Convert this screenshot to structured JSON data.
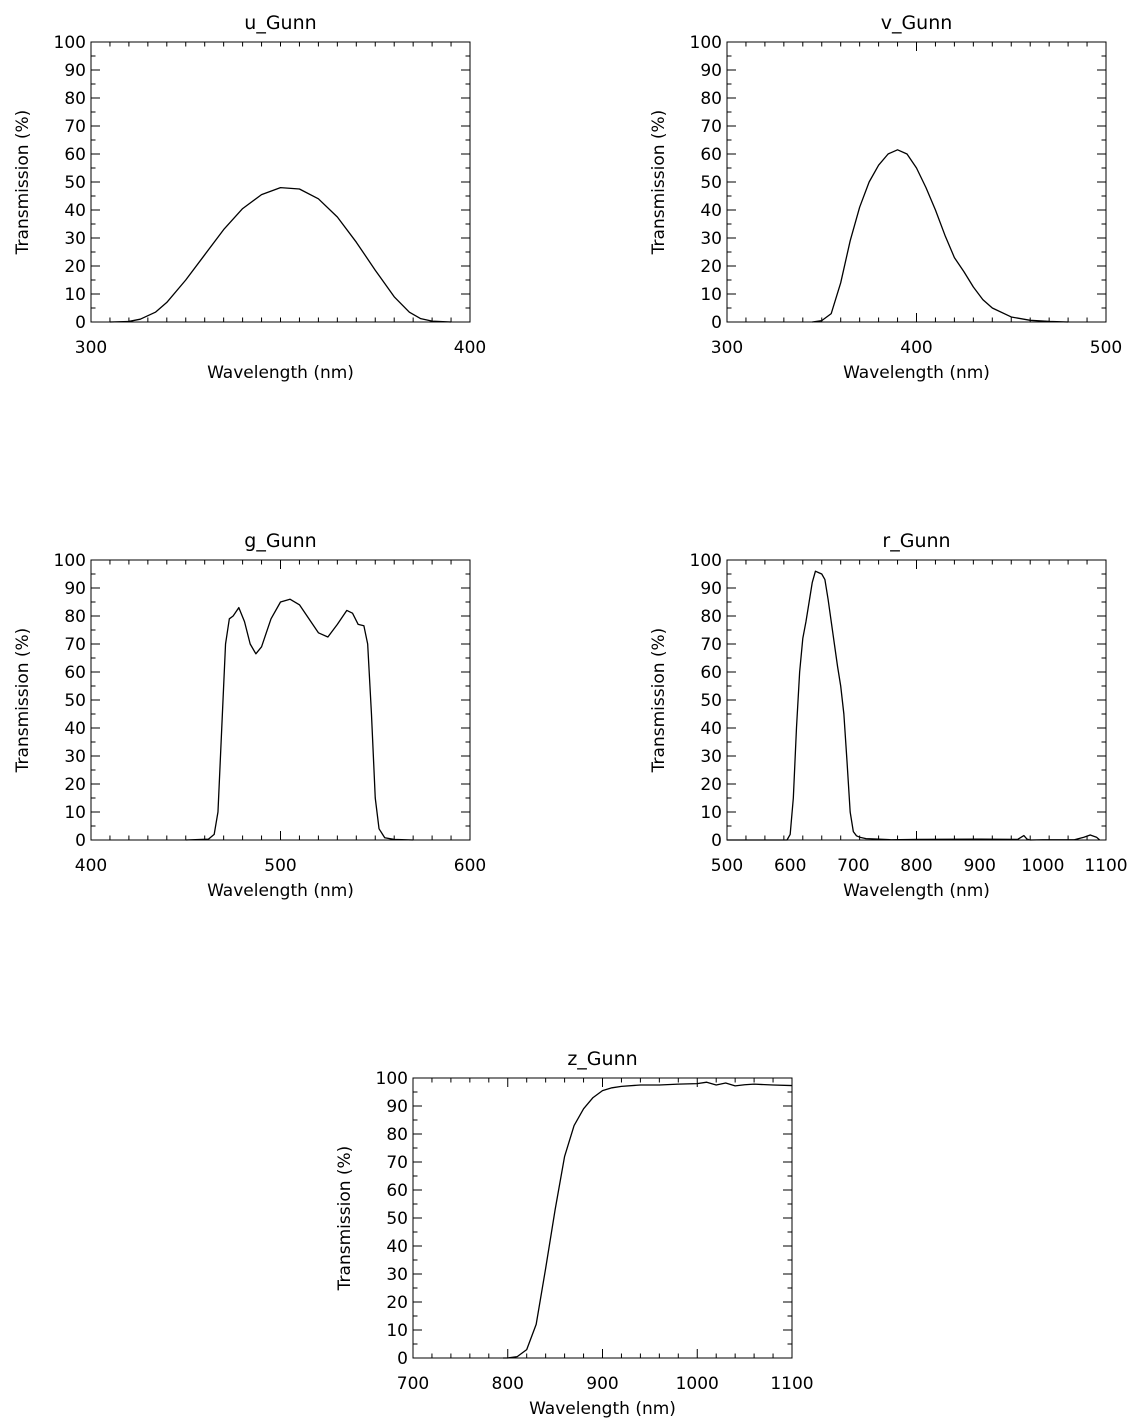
{
  "chart_data": [
    {
      "type": "line",
      "title": "u_Gunn",
      "xlabel": "Wavelength (nm)",
      "ylabel": "Transmission (%)",
      "xlim": [
        300,
        400
      ],
      "ylim": [
        0,
        100
      ],
      "xticks": [
        300,
        400
      ],
      "yticks": [
        0,
        10,
        20,
        30,
        40,
        50,
        60,
        70,
        80,
        90,
        100
      ],
      "series": [
        {
          "x": [
            305,
            310,
            313,
            317,
            320,
            325,
            330,
            335,
            340,
            345,
            350,
            355,
            360,
            365,
            370,
            375,
            380,
            384,
            387,
            390,
            395
          ],
          "y": [
            0,
            0.2,
            1,
            3.5,
            7,
            15,
            24,
            33,
            40.5,
            45.5,
            48,
            47.5,
            44,
            37.5,
            28.5,
            18.5,
            9,
            3.5,
            1.2,
            0.3,
            0
          ]
        }
      ]
    },
    {
      "type": "line",
      "title": "v_Gunn",
      "xlabel": "Wavelength (nm)",
      "ylabel": "Transmission (%)",
      "xlim": [
        300,
        500
      ],
      "ylim": [
        0,
        100
      ],
      "xticks": [
        300,
        400,
        500
      ],
      "yticks": [
        0,
        10,
        20,
        30,
        40,
        50,
        60,
        70,
        80,
        90,
        100
      ],
      "series": [
        {
          "x": [
            345,
            350,
            355,
            360,
            365,
            370,
            375,
            380,
            385,
            390,
            395,
            400,
            405,
            410,
            415,
            420,
            425,
            430,
            435,
            440,
            450,
            460,
            470,
            480
          ],
          "y": [
            0,
            0.5,
            3,
            14,
            29,
            41,
            50,
            56,
            60,
            61.5,
            60,
            55,
            48,
            40,
            31,
            23,
            18,
            12.5,
            8,
            5,
            1.8,
            0.6,
            0.2,
            0
          ]
        }
      ]
    },
    {
      "type": "line",
      "title": "g_Gunn",
      "xlabel": "Wavelength (nm)",
      "ylabel": "Transmission (%)",
      "xlim": [
        400,
        600
      ],
      "ylim": [
        0,
        100
      ],
      "xticks": [
        400,
        500,
        600
      ],
      "yticks": [
        0,
        10,
        20,
        30,
        40,
        50,
        60,
        70,
        80,
        90,
        100
      ],
      "series": [
        {
          "x": [
            450,
            462,
            465,
            467,
            469,
            471,
            473,
            475,
            478,
            481,
            484,
            487,
            490,
            495,
            500,
            505,
            510,
            515,
            520,
            525,
            530,
            535,
            538,
            541,
            544,
            546,
            548,
            550,
            552,
            555,
            560,
            570
          ],
          "y": [
            0,
            0.3,
            2,
            10,
            40,
            70,
            79,
            80,
            83,
            78,
            70,
            66.5,
            69,
            79,
            85,
            86,
            84,
            79,
            74,
            72.5,
            77,
            82,
            81,
            77,
            76.5,
            70,
            45,
            15,
            4,
            0.8,
            0.2,
            0
          ]
        }
      ]
    },
    {
      "type": "line",
      "title": "r_Gunn",
      "xlabel": "Wavelength (nm)",
      "ylabel": "Transmission (%)",
      "xlim": [
        500,
        1100
      ],
      "ylim": [
        0,
        100
      ],
      "xticks": [
        500,
        600,
        700,
        800,
        900,
        1000,
        1100
      ],
      "yticks": [
        0,
        10,
        20,
        30,
        40,
        50,
        60,
        70,
        80,
        90,
        100
      ],
      "series": [
        {
          "x": [
            500,
            595,
            600,
            605,
            610,
            615,
            620,
            625,
            630,
            635,
            640,
            645,
            650,
            655,
            660,
            665,
            670,
            675,
            680,
            685,
            690,
            695,
            700,
            705,
            710,
            720,
            740,
            760,
            800,
            900,
            960,
            970,
            975,
            980,
            1000,
            1050,
            1065,
            1075,
            1085,
            1090
          ],
          "y": [
            0,
            0,
            2,
            15,
            40,
            60,
            72,
            78,
            85,
            92,
            96,
            95.5,
            95,
            93,
            86,
            78,
            70,
            62,
            55,
            45,
            28,
            10,
            3,
            1.5,
            1,
            0.5,
            0.3,
            0.1,
            0.2,
            0.3,
            0.2,
            1.6,
            0.3,
            0,
            0.1,
            0.1,
            1,
            1.8,
            1,
            0
          ]
        }
      ]
    },
    {
      "type": "line",
      "title": "z_Gunn",
      "xlabel": "Wavelength (nm)",
      "ylabel": "Transmission (%)",
      "xlim": [
        700,
        1100
      ],
      "ylim": [
        0,
        100
      ],
      "xticks": [
        700,
        800,
        900,
        1000,
        1100
      ],
      "yticks": [
        0,
        10,
        20,
        30,
        40,
        50,
        60,
        70,
        80,
        90,
        100
      ],
      "series": [
        {
          "x": [
            795,
            800,
            810,
            820,
            830,
            840,
            850,
            860,
            870,
            880,
            890,
            900,
            910,
            920,
            940,
            960,
            980,
            1000,
            1010,
            1020,
            1030,
            1040,
            1050,
            1060,
            1080,
            1100
          ],
          "y": [
            0,
            0,
            0.5,
            3,
            12,
            32,
            53,
            72,
            83,
            89,
            93,
            95.5,
            96.5,
            97,
            97.5,
            97.5,
            97.8,
            98,
            98.5,
            97.5,
            98.2,
            97.2,
            97.6,
            97.8,
            97.5,
            97.3
          ]
        }
      ]
    }
  ]
}
